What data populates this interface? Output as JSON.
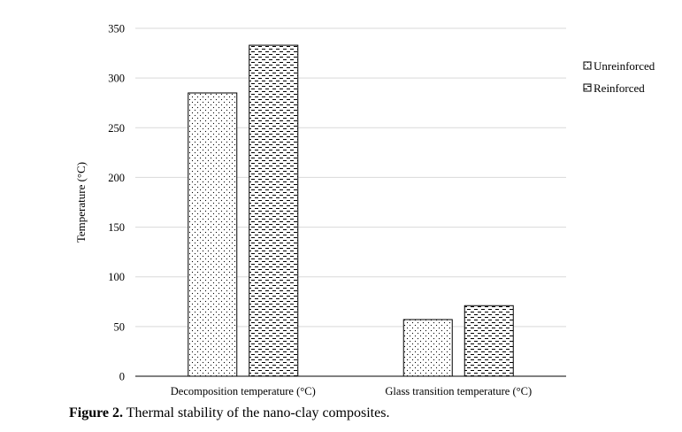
{
  "chart_data": {
    "type": "bar",
    "categories": [
      "Decomposition temperature (°C)",
      "Glass transition temperature (°C)"
    ],
    "series": [
      {
        "name": "Unreinforced",
        "values": [
          285,
          57
        ],
        "pattern": "dots"
      },
      {
        "name": "Reinforced",
        "values": [
          333,
          71
        ],
        "pattern": "dashes"
      }
    ],
    "xlabel": "",
    "ylabel": "Temperature (°C)",
    "ylim": [
      0,
      350
    ],
    "yticks": [
      0,
      50,
      100,
      150,
      200,
      250,
      300,
      350
    ],
    "grid": true,
    "legend": "right"
  },
  "caption": {
    "prefix": "Figure 2.",
    "text": " Thermal stability of the nano-clay composites."
  }
}
